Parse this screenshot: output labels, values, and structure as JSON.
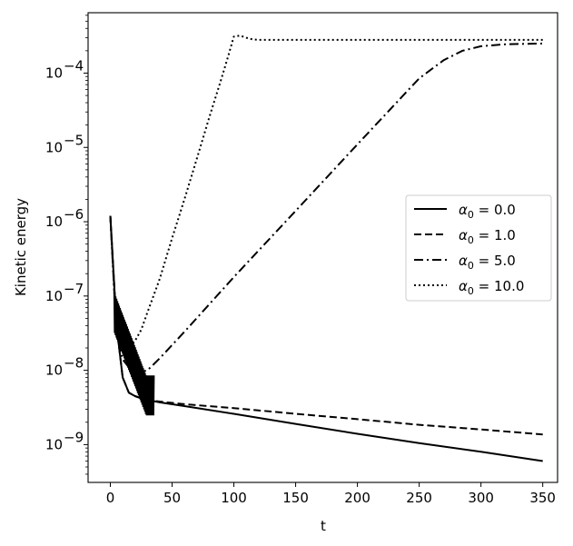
{
  "chart_data": {
    "type": "line",
    "title": "",
    "xlabel": "t",
    "ylabel": "Kinetic energy",
    "yscale": "log",
    "xlim": [
      -18,
      362
    ],
    "ylim": [
      3.1e-10,
      0.00065
    ],
    "xticks": [
      0,
      50,
      100,
      150,
      200,
      250,
      300,
      350
    ],
    "xtick_labels": [
      "0",
      "50",
      "100",
      "150",
      "200",
      "250",
      "300",
      "350"
    ],
    "yticks": [
      {
        "value": 1e-09,
        "base": "10",
        "exp": "−9"
      },
      {
        "value": 1e-08,
        "base": "10",
        "exp": "−8"
      },
      {
        "value": 1e-07,
        "base": "10",
        "exp": "−7"
      },
      {
        "value": 1e-06,
        "base": "10",
        "exp": "−6"
      },
      {
        "value": 1e-05,
        "base": "10",
        "exp": "−5"
      },
      {
        "value": 0.0001,
        "base": "10",
        "exp": "−4"
      }
    ],
    "grid": false,
    "legend_position": "center-right",
    "line_color": "#000000",
    "series": [
      {
        "name": "α₀ = 0.0",
        "legend_symbol": "α",
        "legend_sub": "0",
        "legend_value": "0.0",
        "dash": "solid",
        "x": [
          0,
          5,
          10,
          15,
          20,
          25,
          30,
          40,
          60,
          100,
          150,
          200,
          250,
          300,
          350
        ],
        "y": [
          1.2e-06,
          4e-08,
          8e-09,
          5e-09,
          4.5e-09,
          4.2e-09,
          4e-09,
          3.7e-09,
          3.3e-09,
          2.6e-09,
          1.9e-09,
          1.4e-09,
          1.05e-09,
          8e-10,
          6e-10
        ]
      },
      {
        "name": "α₀ = 1.0",
        "legend_symbol": "α",
        "legend_sub": "0",
        "legend_value": "1.0",
        "dash": "dashed",
        "x": [
          0,
          5,
          10,
          15,
          20,
          25,
          30,
          40,
          60,
          100,
          150,
          200,
          250,
          300,
          350
        ],
        "y": [
          1.2e-06,
          4e-08,
          8e-09,
          5e-09,
          4.5e-09,
          4.2e-09,
          4e-09,
          3.8e-09,
          3.5e-09,
          3.1e-09,
          2.6e-09,
          2.2e-09,
          1.85e-09,
          1.6e-09,
          1.37e-09
        ]
      },
      {
        "name": "α₀ = 5.0",
        "legend_symbol": "α",
        "legend_sub": "0",
        "legend_value": "5.0",
        "dash": "dashdot",
        "x": [
          0,
          5,
          10,
          15,
          20,
          25,
          30,
          35,
          40,
          60,
          100,
          150,
          200,
          250,
          270,
          285,
          300,
          320,
          350
        ],
        "y": [
          1.2e-06,
          3e-08,
          1.4e-08,
          1.1e-08,
          1e-08,
          9.5e-09,
          1e-08,
          1.2e-08,
          1.45e-08,
          3.3e-08,
          1.8e-07,
          1.4e-06,
          1.1e-05,
          8.5e-05,
          0.00015,
          0.0002,
          0.00023,
          0.000245,
          0.00025
        ]
      },
      {
        "name": "α₀ = 10.0",
        "legend_symbol": "α",
        "legend_sub": "0",
        "legend_value": "10.0",
        "dash": "dotted",
        "x": [
          0,
          5,
          10,
          15,
          20,
          25,
          30,
          40,
          50,
          60,
          70,
          80,
          90,
          95,
          100,
          105,
          110,
          115,
          120,
          130,
          150,
          200,
          250,
          300,
          350
        ],
        "y": [
          1.2e-06,
          3e-08,
          1.8e-08,
          2e-08,
          2.5e-08,
          3.5e-08,
          6e-08,
          1.7e-07,
          6e-07,
          2e-06,
          7e-06,
          2.5e-05,
          8.5e-05,
          0.00016,
          0.00031,
          0.00032,
          0.0003,
          0.000285,
          0.00028,
          0.00028,
          0.00028,
          0.00028,
          0.00028,
          0.00028,
          0.00028
        ]
      }
    ]
  }
}
